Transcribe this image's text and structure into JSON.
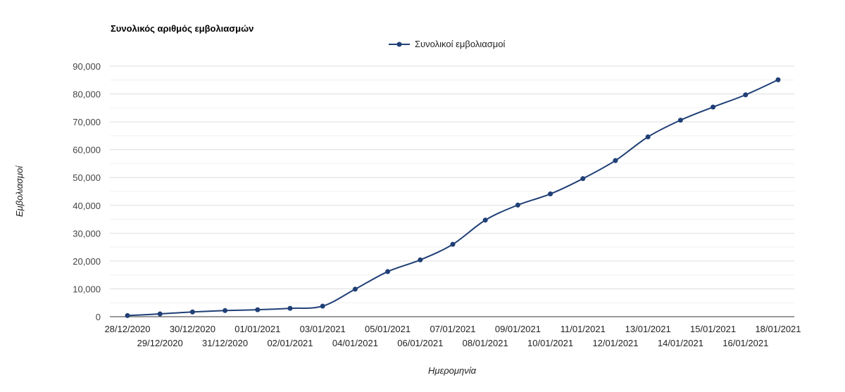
{
  "chart_data": {
    "type": "line",
    "title": "Συνολικός αριθμός εμβολιασμών",
    "xlabel": "Ημερομηνία",
    "ylabel": "Εμβολιασμοί",
    "ylim": [
      0,
      90000
    ],
    "y_ticks": [
      "0",
      "10,000",
      "20,000",
      "30,000",
      "40,000",
      "50,000",
      "60,000",
      "70,000",
      "80,000",
      "90,000"
    ],
    "grid": true,
    "legend": "top-center",
    "categories": [
      "28/12/2020",
      "29/12/2020",
      "30/12/2020",
      "31/12/2020",
      "01/01/2021",
      "02/01/2021",
      "03/01/2021",
      "04/01/2021",
      "05/01/2021",
      "06/01/2021",
      "07/01/2021",
      "08/01/2021",
      "09/01/2021",
      "10/01/2021",
      "11/01/2021",
      "12/01/2021",
      "13/01/2021",
      "14/01/2021",
      "15/01/2021",
      "16/01/2021",
      "18/01/2021"
    ],
    "series": [
      {
        "name": "Συνολικοί εμβολιασμοί",
        "color": "#1f3f76",
        "values": [
          400,
          1000,
          1700,
          2200,
          2500,
          3000,
          3800,
          9900,
          16200,
          20400,
          26000,
          34700,
          40100,
          44100,
          49600,
          56100,
          64600,
          70600,
          75300,
          79700,
          85100
        ]
      }
    ]
  }
}
